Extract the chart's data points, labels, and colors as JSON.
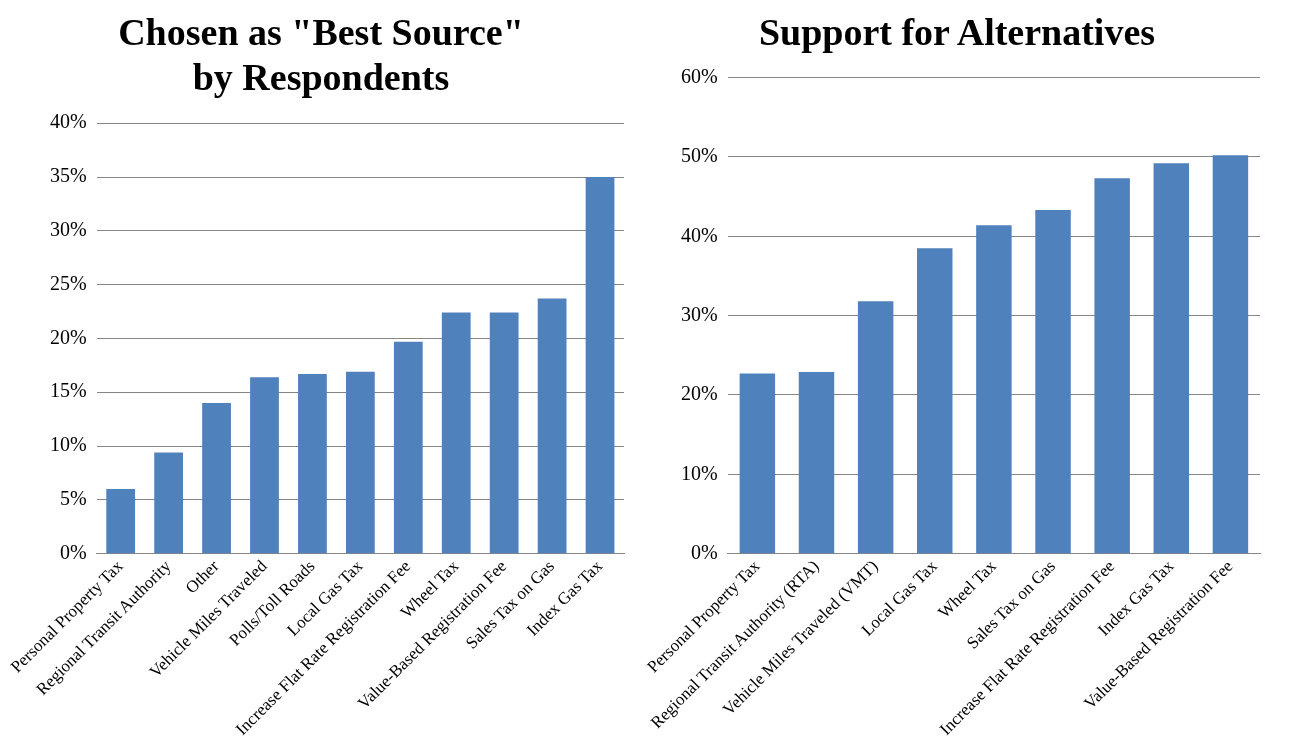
{
  "chart_data": [
    {
      "type": "bar",
      "title": "Chosen as \"Best Source\"\nby Respondents",
      "categories": [
        "Personal Property Tax",
        "Regional Transit Authority",
        "Other",
        "Vehicle Miles Traveled",
        "Polls/Toll Roads",
        "Local Gas Tax",
        "Increase Flat Rate Registration Fee",
        "Wheel Tax",
        "Value-Based Registration Fee",
        "Sales Tax on Gas",
        "Index Gas Tax"
      ],
      "values": [
        6.0,
        9.4,
        14.0,
        16.4,
        16.7,
        16.9,
        19.7,
        22.4,
        22.4,
        23.7,
        35.0
      ],
      "color": "#4f81bd",
      "ylim": [
        0,
        40
      ],
      "yticks": [
        {
          "value": 0,
          "label": "0%"
        },
        {
          "value": 5,
          "label": "5%"
        },
        {
          "value": 10,
          "label": "10%"
        },
        {
          "value": 15,
          "label": "15%"
        },
        {
          "value": 20,
          "label": "20%"
        },
        {
          "value": 25,
          "label": "25%"
        },
        {
          "value": 30,
          "label": "30%"
        },
        {
          "value": 35,
          "label": "35%"
        },
        {
          "value": 40,
          "label": "40%"
        }
      ],
      "grid": "y",
      "legend": false
    },
    {
      "type": "bar",
      "title": "Support for Alternatives",
      "categories": [
        "Personal Property Tax",
        "Regional Transit Authority (RTA)",
        "Vehicle Miles Traveled (VMT)",
        "Local Gas Tax",
        "Wheel Tax",
        "Sales Tax on Gas",
        "Increase Flat Rate Registration Fee",
        "Index Gas Tax",
        "Value-Based Registration Fee"
      ],
      "values": [
        22.7,
        22.9,
        31.8,
        38.5,
        41.4,
        43.3,
        47.3,
        49.2,
        50.2
      ],
      "color": "#4f81bd",
      "ylim": [
        0,
        60
      ],
      "yticks": [
        {
          "value": 0,
          "label": "0%"
        },
        {
          "value": 10,
          "label": "10%"
        },
        {
          "value": 20,
          "label": "20%"
        },
        {
          "value": 30,
          "label": "30%"
        },
        {
          "value": 40,
          "label": "40%"
        },
        {
          "value": 50,
          "label": "50%"
        },
        {
          "value": 60,
          "label": "60%"
        }
      ],
      "grid": "y",
      "legend": false
    }
  ]
}
